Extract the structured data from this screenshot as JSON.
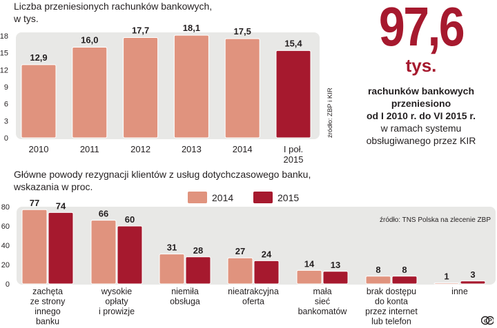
{
  "chart_data": [
    {
      "type": "bar",
      "title": "Liczba przeniesionych rachunków bankowych,\nw tys.",
      "categories": [
        "2010",
        "2011",
        "2012",
        "2013",
        "2014",
        "I poł.\n2015"
      ],
      "values": [
        12.9,
        16.0,
        17.7,
        18.1,
        17.5,
        15.4
      ],
      "value_labels": [
        "12,9",
        "16,0",
        "17,7",
        "18,1",
        "17,5",
        "15,4"
      ],
      "yticks": [
        0,
        3,
        6,
        9,
        12,
        15,
        18
      ],
      "ylim": [
        0,
        18
      ],
      "highlight_index": 5,
      "source": "źródło: ZBP i KIR",
      "grid": false
    },
    {
      "type": "bar",
      "title": "Główne powody rezygnacji klientów z usług dotychczasowego banku,\nwskazania w proc.",
      "categories": [
        "zachęta\nze strony\ninnego\nbanku",
        "wysokie\nopłaty\ni prowizje",
        "niemiła\nobsługa",
        "nieatrakcyjna\noferta",
        "mała\nsieć\nbankomatów",
        "brak dostępu\ndo konta\nprzez internet\nlub telefon",
        "inne"
      ],
      "series": [
        {
          "name": "2014",
          "values": [
            77,
            66,
            31,
            27,
            14,
            8,
            1
          ]
        },
        {
          "name": "2015",
          "values": [
            74,
            60,
            28,
            24,
            13,
            8,
            3
          ]
        }
      ],
      "yticks": [
        0,
        20,
        40,
        60,
        80
      ],
      "ylim": [
        0,
        80
      ],
      "legend_position": "top-center",
      "source": "źródło: TNS Polska na zlecenie ZBP",
      "grid": false
    }
  ],
  "highlight": {
    "number": "97,6",
    "unit": "tys.",
    "bold_lines": [
      "rachunków bankowych",
      "przeniesiono",
      "od I 2010 r. do VI 2015 r."
    ],
    "normal_lines": [
      "w ramach systemu",
      "obsługiwanego przez KIR"
    ]
  },
  "colors": {
    "bar_light": "#e0937e",
    "bar_dark": "#a6192e",
    "panel_bg": "#e8e8e6",
    "text": "#231f20"
  },
  "copyright": "©P"
}
